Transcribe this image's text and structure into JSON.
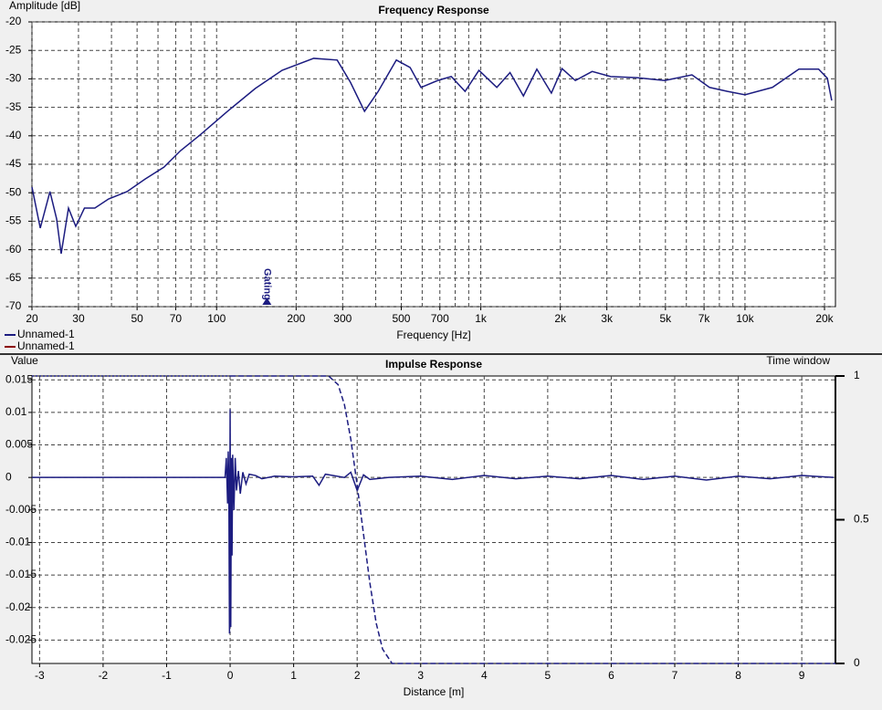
{
  "chart_data": [
    {
      "type": "line",
      "title": "Frequency Response",
      "y_label": "Amplitude [dB]",
      "x_label": "Frequency [Hz]",
      "log_x": true,
      "grid": true,
      "xlim": [
        20,
        22000
      ],
      "ylim": [
        -70,
        -20
      ],
      "xticks": [
        20,
        30,
        50,
        70,
        100,
        200,
        300,
        500,
        700,
        {
          "value": 1000,
          "label": "1k"
        },
        {
          "value": 2000,
          "label": "2k"
        },
        {
          "value": 3000,
          "label": "3k"
        },
        {
          "value": 5000,
          "label": "5k"
        },
        {
          "value": 7000,
          "label": "7k"
        },
        {
          "value": 10000,
          "label": "10k"
        },
        {
          "value": 20000,
          "label": "20k"
        }
      ],
      "minor_xticks": [
        40,
        60,
        80,
        90,
        400,
        600,
        800,
        900,
        4000,
        6000,
        8000,
        9000
      ],
      "yticks": [
        -20,
        -25,
        -30,
        -35,
        -40,
        -45,
        -50,
        -55,
        -60,
        -65,
        -70
      ],
      "series": [
        {
          "name": "Unnamed-1",
          "color": "#1c1c80",
          "x": [
            20,
            21.5,
            23.4,
            24.8,
            25.8,
            27.5,
            29.3,
            31.6,
            34.6,
            39,
            45.8,
            53.6,
            63.2,
            73.1,
            86.3,
            110,
            140,
            177,
            233,
            286,
            321,
            363,
            409,
            479,
            540,
            594,
            686,
            773,
            872,
            984,
            1150,
            1290,
            1450,
            1630,
            1850,
            2030,
            2280,
            2640,
            3100,
            3900,
            4970,
            6300,
            7340,
            8580,
            10000,
            12700,
            16000,
            19000,
            20500,
            21300
          ],
          "values": [
            -49,
            -56.2,
            -49.8,
            -54.6,
            -60.7,
            -52.7,
            -55.9,
            -52.7,
            -52.7,
            -51.1,
            -49.8,
            -47.6,
            -45.5,
            -42.6,
            -39.9,
            -35.7,
            -31.7,
            -28.5,
            -26.4,
            -26.7,
            -30.6,
            -35.7,
            -32.2,
            -26.7,
            -28,
            -31.5,
            -30.3,
            -29.6,
            -32.2,
            -28.5,
            -31.5,
            -28.9,
            -33,
            -28.3,
            -32.5,
            -28.2,
            -30.3,
            -28.7,
            -29.6,
            -29.8,
            -30.3,
            -29.3,
            -31.5,
            -32.2,
            -32.8,
            -31.5,
            -28.3,
            -28.3,
            -29.9,
            -33.8
          ]
        },
        {
          "name": "Unnamed-1",
          "color": "#8b0000",
          "x": [],
          "values": []
        }
      ],
      "annotation": {
        "label": "Gating",
        "x": 155
      }
    },
    {
      "type": "line",
      "title": "Impulse Response",
      "y_label": "Value",
      "y2_label": "Time window",
      "x_label": "Distance [m]",
      "grid": true,
      "xlim": [
        -3.12,
        9.53
      ],
      "ylim": [
        -0.0286,
        0.0156
      ],
      "y2lim": [
        0,
        1
      ],
      "xticks": [
        -3,
        -2,
        -1,
        0,
        1,
        2,
        3,
        4,
        5,
        6,
        7,
        8,
        9
      ],
      "yticks": [
        0.015,
        0.01,
        0.005,
        0,
        -0.005,
        -0.01,
        -0.015,
        -0.02,
        -0.025
      ],
      "y2ticks": [
        1,
        0.5,
        0
      ],
      "series": [
        {
          "color": "#1c1c80",
          "x": [
            -3.12,
            -0.08,
            -0.06,
            -0.04,
            -0.03,
            -0.02,
            -0.01,
            0,
            0.01,
            0.02,
            0.03,
            0.04,
            0.06,
            0.08,
            0.1,
            0.13,
            0.16,
            0.2,
            0.25,
            0.3,
            0.4,
            0.5,
            0.7,
            1.0,
            1.3,
            1.4,
            1.5,
            1.8,
            1.9,
            2.0,
            2.1,
            2.2,
            2.5,
            3.0,
            3.5,
            4.0,
            4.5,
            5.0,
            5.5,
            6.0,
            6.5,
            7.0,
            7.5,
            8.0,
            8.5,
            9.0,
            9.5
          ],
          "values": [
            0,
            0,
            0.003,
            -0.004,
            0.004,
            -0.001,
            -0.024,
            0.0105,
            -0.023,
            0.003,
            -0.012,
            0.0035,
            -0.005,
            0.003,
            -0.002,
            0.001,
            -0.0025,
            0.0008,
            -0.001,
            0.0005,
            0.0003,
            -0.0002,
            0.0002,
            0.0001,
            0.0002,
            -0.0012,
            0.0005,
            0,
            0.0008,
            -0.002,
            0.0004,
            -0.0003,
            0,
            0.0002,
            -0.0003,
            0.0003,
            -0.0002,
            0.0002,
            -0.0002,
            0.0003,
            -0.0003,
            0.0002,
            -0.0004,
            0.0002,
            -0.0002,
            0.0003,
            0
          ]
        },
        {
          "color": "#1c1c80",
          "axis": "y2",
          "dash": "dotted",
          "x": [
            -3.12,
            0
          ],
          "values": [
            1,
            1
          ]
        },
        {
          "color": "#1c1c80",
          "axis": "y2",
          "dash": "dashed",
          "x": [
            0,
            1.55,
            1.7,
            1.8,
            1.9,
            2.0,
            2.1,
            2.2,
            2.3,
            2.4,
            2.55,
            9.53
          ],
          "values": [
            1,
            1,
            0.97,
            0.9,
            0.78,
            0.62,
            0.45,
            0.28,
            0.14,
            0.05,
            0,
            0
          ]
        }
      ]
    }
  ]
}
